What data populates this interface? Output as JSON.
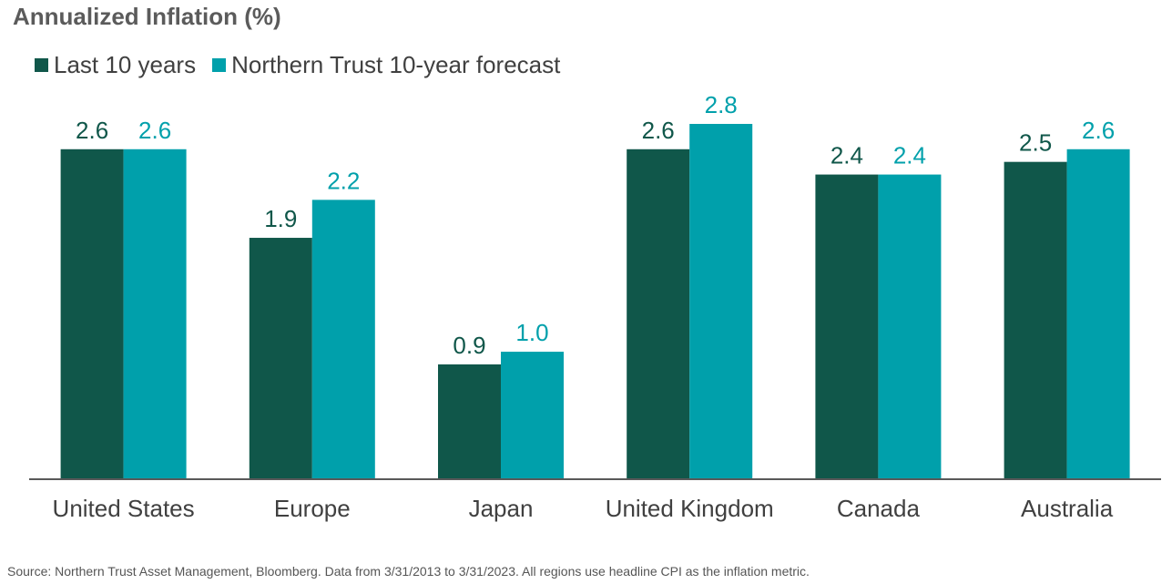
{
  "colors": {
    "series1": "#10574a",
    "series2": "#00a0ab",
    "axis": "#595959",
    "ticktext": "#404040"
  },
  "chart_data": {
    "type": "bar",
    "title": "Annualized Inflation (%)",
    "categories": [
      "United States",
      "Europe",
      "Japan",
      "United Kingdom",
      "Canada",
      "Australia"
    ],
    "series": [
      {
        "name": "Last 10 years",
        "values": [
          2.6,
          1.9,
          0.9,
          2.6,
          2.4,
          2.5
        ],
        "labels": [
          "2.6",
          "1.9",
          "0.9",
          "2.6",
          "2.4",
          "2.5"
        ]
      },
      {
        "name": "Northern Trust 10-year forecast",
        "values": [
          2.6,
          2.2,
          1.0,
          2.8,
          2.4,
          2.6
        ],
        "labels": [
          "2.6",
          "2.2",
          "1.0",
          "2.8",
          "2.4",
          "2.6"
        ]
      }
    ],
    "xlabel": "",
    "ylabel": "",
    "ylim": [
      0,
      2.8
    ],
    "grid": false,
    "legend": "top-left"
  },
  "footer": {
    "source": "Source: Northern Trust Asset Management, Bloomberg. Data from 3/31/2013 to 3/31/2023. All regions use headline CPI as the inflation metric."
  }
}
